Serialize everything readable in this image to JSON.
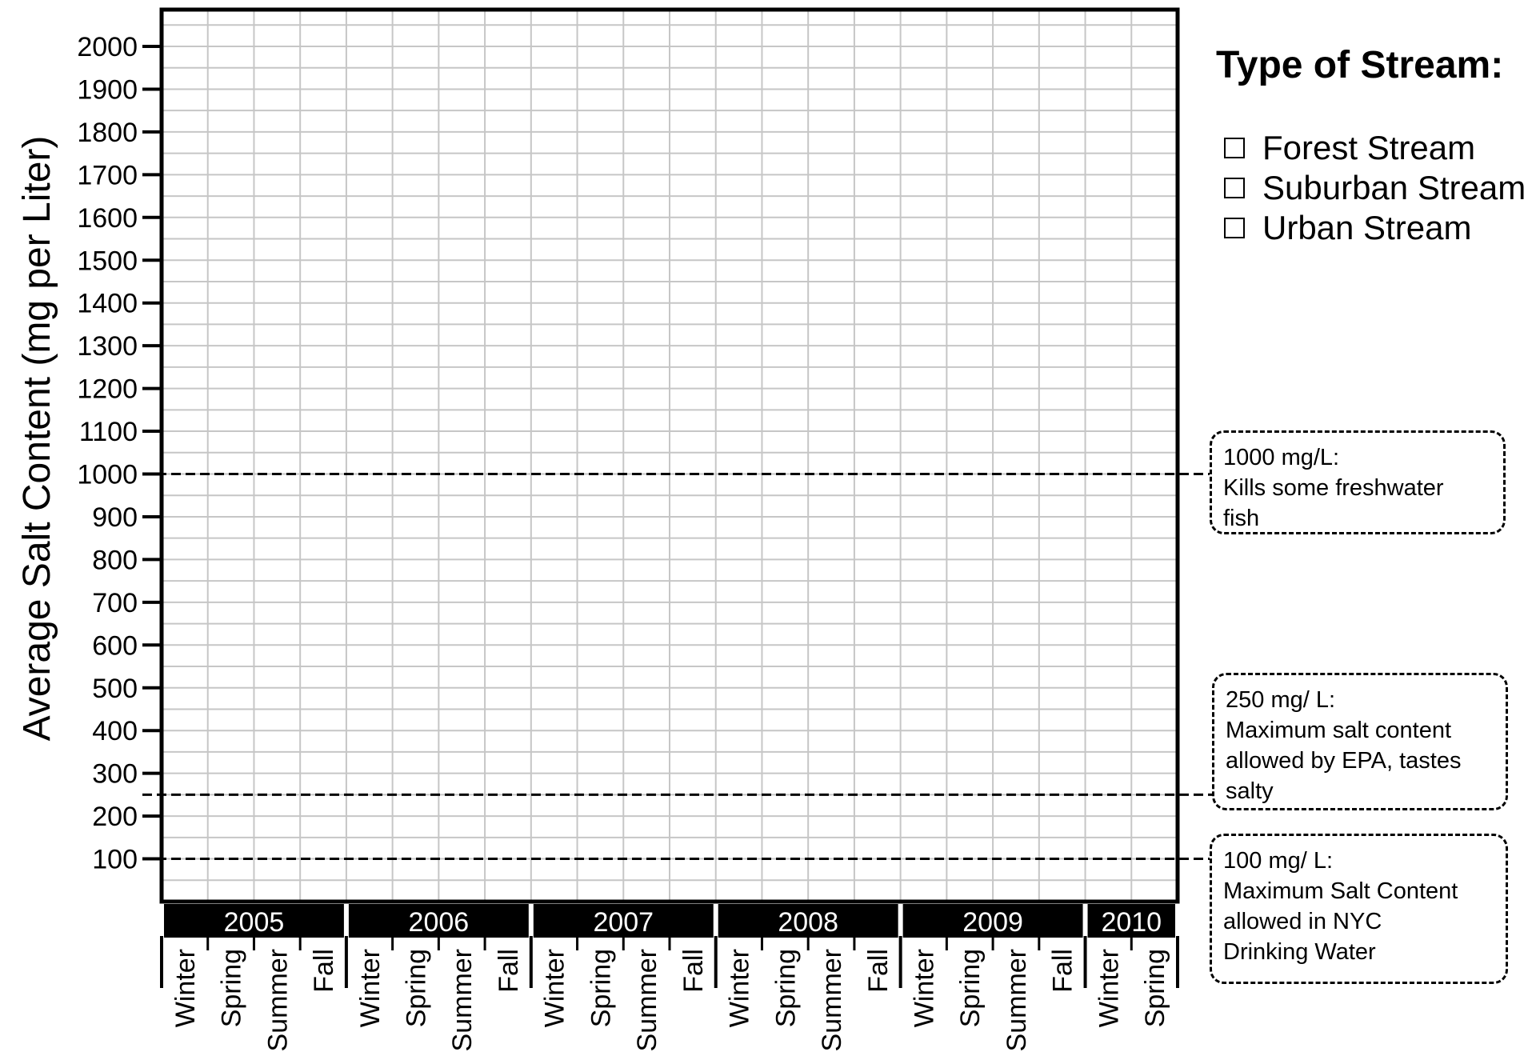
{
  "chart_data": {
    "type": "line",
    "title": "",
    "ylabel": "Average Salt Content (mg per Liter)",
    "xlabel": "",
    "ylim": [
      0,
      2000
    ],
    "yticks": [
      100,
      200,
      300,
      400,
      500,
      600,
      700,
      800,
      900,
      1000,
      1100,
      1200,
      1300,
      1400,
      1500,
      1600,
      1700,
      1800,
      1900,
      2000
    ],
    "years": [
      {
        "label": "2005",
        "seasons": [
          "Winter",
          "Spring",
          "Summer",
          "Fall"
        ]
      },
      {
        "label": "2006",
        "seasons": [
          "Winter",
          "Spring",
          "Summer",
          "Fall"
        ]
      },
      {
        "label": "2007",
        "seasons": [
          "Winter",
          "Spring",
          "Summer",
          "Fall"
        ]
      },
      {
        "label": "2008",
        "seasons": [
          "Winter",
          "Spring",
          "Summer",
          "Fall"
        ]
      },
      {
        "label": "2009",
        "seasons": [
          "Winter",
          "Spring",
          "Summer",
          "Fall"
        ]
      },
      {
        "label": "2010",
        "seasons": [
          "Winter",
          "Spring"
        ]
      }
    ],
    "series": [],
    "grid": true,
    "reference_lines": [
      {
        "value": 1000,
        "lines": [
          "1000 mg/L:",
          "Kills some freshwater",
          "fish"
        ]
      },
      {
        "value": 250,
        "lines": [
          "250 mg/ L:",
          "Maximum salt content",
          "allowed by EPA, tastes",
          "salty"
        ]
      },
      {
        "value": 100,
        "lines": [
          "100 mg/ L:",
          "Maximum Salt Content",
          "allowed in NYC",
          "Drinking Water"
        ]
      }
    ]
  },
  "legend": {
    "title": "Type of Stream:",
    "items": [
      "Forest Stream",
      "Suburban Stream",
      "Urban Stream"
    ]
  }
}
